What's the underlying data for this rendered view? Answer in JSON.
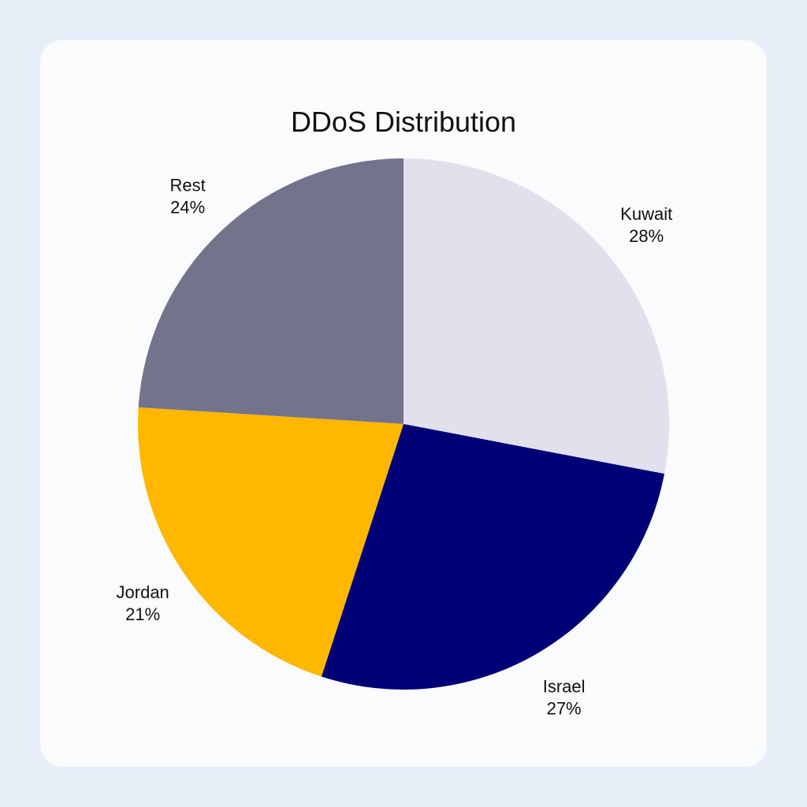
{
  "chart_data": {
    "type": "pie",
    "title": "DDoS Distribution",
    "slices": [
      {
        "label": "Kuwait",
        "value": 28,
        "value_label": "28%",
        "color": "#e3e0ee"
      },
      {
        "label": "Israel",
        "value": 27,
        "value_label": "27%",
        "color": "#000076"
      },
      {
        "label": "Jordan",
        "value": 21,
        "value_label": "21%",
        "color": "#ffb700"
      },
      {
        "label": "Rest",
        "value": 24,
        "value_label": "24%",
        "color": "#73738c"
      }
    ],
    "start_angle": "12 o'clock",
    "direction": "clockwise",
    "legend": "none"
  }
}
